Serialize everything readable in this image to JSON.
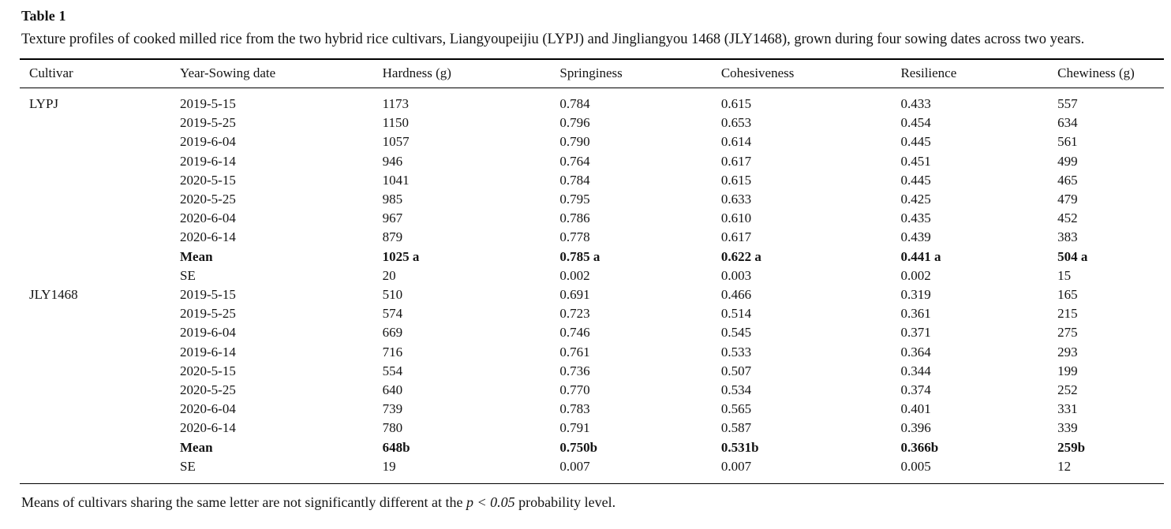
{
  "table": {
    "label": "Table 1",
    "caption": "Texture profiles of cooked milled rice from the two hybrid rice cultivars, Liangyoupeijiu (LYPJ) and Jingliangyou 1468 (JLY1468), grown during four sowing dates across two years.",
    "columns": [
      "Cultivar",
      "Year-Sowing date",
      "Hardness (g)",
      "Springiness",
      "Cohesiveness",
      "Resilience",
      "Chewiness (g)"
    ],
    "rows": [
      {
        "bold": false,
        "cells": [
          "LYPJ",
          "2019-5-15",
          "1173",
          "0.784",
          "0.615",
          "0.433",
          "557"
        ]
      },
      {
        "bold": false,
        "cells": [
          "",
          "2019-5-25",
          "1150",
          "0.796",
          "0.653",
          "0.454",
          "634"
        ]
      },
      {
        "bold": false,
        "cells": [
          "",
          "2019-6-04",
          "1057",
          "0.790",
          "0.614",
          "0.445",
          "561"
        ]
      },
      {
        "bold": false,
        "cells": [
          "",
          "2019-6-14",
          "946",
          "0.764",
          "0.617",
          "0.451",
          "499"
        ]
      },
      {
        "bold": false,
        "cells": [
          "",
          "2020-5-15",
          "1041",
          "0.784",
          "0.615",
          "0.445",
          "465"
        ]
      },
      {
        "bold": false,
        "cells": [
          "",
          "2020-5-25",
          "985",
          "0.795",
          "0.633",
          "0.425",
          "479"
        ]
      },
      {
        "bold": false,
        "cells": [
          "",
          "2020-6-04",
          "967",
          "0.786",
          "0.610",
          "0.435",
          "452"
        ]
      },
      {
        "bold": false,
        "cells": [
          "",
          "2020-6-14",
          "879",
          "0.778",
          "0.617",
          "0.439",
          "383"
        ]
      },
      {
        "bold": true,
        "cells": [
          "",
          "Mean",
          "1025 a",
          "0.785 a",
          "0.622 a",
          "0.441 a",
          "504 a"
        ]
      },
      {
        "bold": false,
        "cells": [
          "",
          "SE",
          "20",
          "0.002",
          "0.003",
          "0.002",
          "15"
        ]
      },
      {
        "bold": false,
        "cells": [
          "JLY1468",
          "2019-5-15",
          "510",
          "0.691",
          "0.466",
          "0.319",
          "165"
        ]
      },
      {
        "bold": false,
        "cells": [
          "",
          "2019-5-25",
          "574",
          "0.723",
          "0.514",
          "0.361",
          "215"
        ]
      },
      {
        "bold": false,
        "cells": [
          "",
          "2019-6-04",
          "669",
          "0.746",
          "0.545",
          "0.371",
          "275"
        ]
      },
      {
        "bold": false,
        "cells": [
          "",
          "2019-6-14",
          "716",
          "0.761",
          "0.533",
          "0.364",
          "293"
        ]
      },
      {
        "bold": false,
        "cells": [
          "",
          "2020-5-15",
          "554",
          "0.736",
          "0.507",
          "0.344",
          "199"
        ]
      },
      {
        "bold": false,
        "cells": [
          "",
          "2020-5-25",
          "640",
          "0.770",
          "0.534",
          "0.374",
          "252"
        ]
      },
      {
        "bold": false,
        "cells": [
          "",
          "2020-6-04",
          "739",
          "0.783",
          "0.565",
          "0.401",
          "331"
        ]
      },
      {
        "bold": false,
        "cells": [
          "",
          "2020-6-14",
          "780",
          "0.791",
          "0.587",
          "0.396",
          "339"
        ]
      },
      {
        "bold": true,
        "cells": [
          "",
          "Mean",
          "648b",
          "0.750b",
          "0.531b",
          "0.366b",
          "259b"
        ]
      },
      {
        "bold": false,
        "cells": [
          "",
          "SE",
          "19",
          "0.007",
          "0.007",
          "0.005",
          "12"
        ]
      }
    ],
    "footnote": {
      "pre": "Means of cultivars sharing the same letter are not significantly different at the ",
      "italic": "p < 0.05",
      "post": " probability level."
    },
    "text_color": "#141414",
    "rule_color": "#000000"
  }
}
